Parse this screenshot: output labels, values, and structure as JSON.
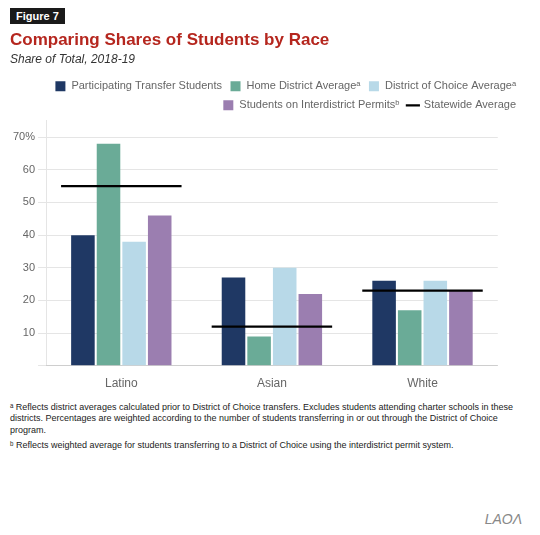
{
  "chart_data": {
    "type": "bar",
    "title": "Comparing Shares of Students by Race",
    "subtitle": "Share of Total, 2018-19",
    "categories": [
      "Latino",
      "Asian",
      "White"
    ],
    "series": [
      {
        "name": "Participating Transfer Students",
        "color": "#1f3864",
        "values": [
          40,
          27,
          26
        ]
      },
      {
        "name": "Home District Averageᵃ",
        "color": "#6aab97",
        "values": [
          68,
          9,
          17
        ]
      },
      {
        "name": "District of Choice Averageᵃ",
        "color": "#b8d9e8",
        "values": [
          38,
          30,
          26
        ]
      },
      {
        "name": "Students on Interdistrict Permitsᵇ",
        "color": "#9b7eb0",
        "values": [
          46,
          22,
          23
        ]
      },
      {
        "name": "Statewide Average",
        "type": "line",
        "marker": "line",
        "line_style": "none",
        "color": "#000000",
        "values": [
          55,
          12,
          23
        ]
      }
    ],
    "ylim": [
      0,
      75
    ],
    "yticks": [
      {
        "value": 0,
        "label": ""
      },
      10,
      20,
      30,
      40,
      50,
      60,
      {
        "value": 70,
        "label": "70%"
      }
    ],
    "grid": true,
    "legend": "upper right",
    "annotations": [
      "Figure 7",
      "ᵃ Reflects district averages calculated prior to District of Choice transfers. Excludes students attending charter schools in these districts. Percentages are weighted according to the number of students transferring in or out through the District of Choice program.",
      "ᵇ Reflects weighted average for students transferring to a District of Choice using the interdistrict permit system.",
      "LAOΛ"
    ]
  }
}
